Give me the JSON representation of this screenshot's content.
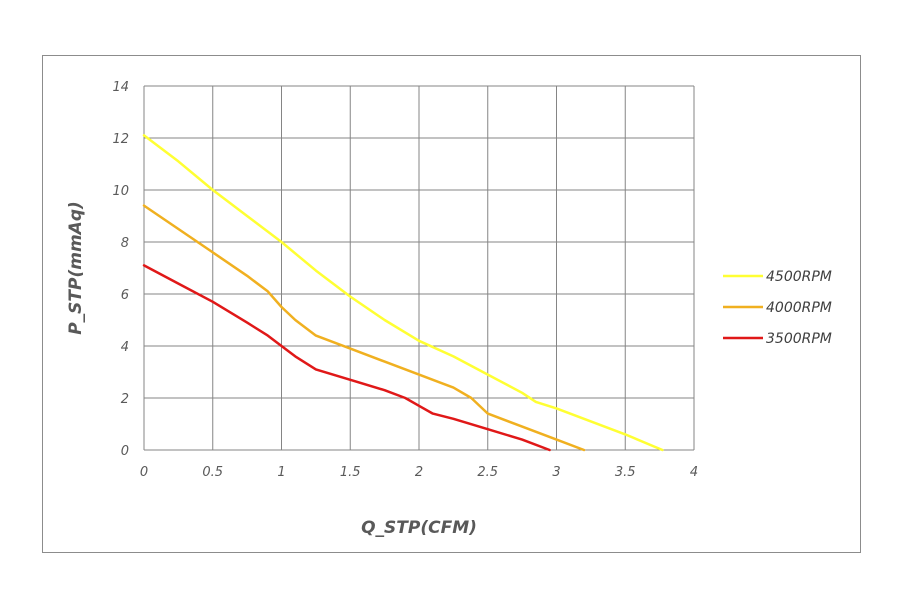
{
  "chart_data": {
    "type": "line",
    "xlabel": "Q_STP(CFM)",
    "ylabel": "P_STP(mmAq)",
    "xlim": [
      0,
      4
    ],
    "ylim": [
      0,
      14
    ],
    "xticks": [
      "0",
      "0.5",
      "1",
      "1.5",
      "2",
      "2.5",
      "3",
      "3.5",
      "4"
    ],
    "yticks": [
      "0",
      "2",
      "4",
      "6",
      "8",
      "10",
      "12",
      "14"
    ],
    "grid": true,
    "legend_position": "right",
    "series": [
      {
        "name": "4500RPM",
        "color": "#ffff33",
        "points": [
          [
            0,
            12.1
          ],
          [
            0.25,
            11.1
          ],
          [
            0.5,
            10.0
          ],
          [
            0.75,
            9.0
          ],
          [
            1.0,
            8.0
          ],
          [
            1.25,
            6.9
          ],
          [
            1.5,
            5.9
          ],
          [
            1.75,
            5.0
          ],
          [
            2.0,
            4.2
          ],
          [
            2.25,
            3.6
          ],
          [
            2.5,
            2.9
          ],
          [
            2.75,
            2.2
          ],
          [
            2.85,
            1.85
          ],
          [
            3.0,
            1.6
          ],
          [
            3.25,
            1.1
          ],
          [
            3.5,
            0.6
          ],
          [
            3.77,
            0
          ]
        ]
      },
      {
        "name": "4000RPM",
        "color": "#f0b020",
        "points": [
          [
            0,
            9.4
          ],
          [
            0.25,
            8.5
          ],
          [
            0.5,
            7.6
          ],
          [
            0.75,
            6.7
          ],
          [
            0.9,
            6.1
          ],
          [
            1.0,
            5.5
          ],
          [
            1.1,
            5.0
          ],
          [
            1.25,
            4.4
          ],
          [
            1.5,
            3.9
          ],
          [
            1.75,
            3.4
          ],
          [
            2.0,
            2.9
          ],
          [
            2.25,
            2.4
          ],
          [
            2.38,
            2.0
          ],
          [
            2.5,
            1.4
          ],
          [
            2.75,
            0.9
          ],
          [
            3.0,
            0.4
          ],
          [
            3.2,
            0
          ]
        ]
      },
      {
        "name": "3500RPM",
        "color": "#e01818",
        "points": [
          [
            0,
            7.1
          ],
          [
            0.25,
            6.4
          ],
          [
            0.5,
            5.7
          ],
          [
            0.75,
            4.9
          ],
          [
            0.9,
            4.4
          ],
          [
            1.0,
            4.0
          ],
          [
            1.1,
            3.6
          ],
          [
            1.25,
            3.1
          ],
          [
            1.5,
            2.7
          ],
          [
            1.75,
            2.3
          ],
          [
            1.9,
            2.0
          ],
          [
            2.0,
            1.7
          ],
          [
            2.1,
            1.4
          ],
          [
            2.25,
            1.2
          ],
          [
            2.5,
            0.8
          ],
          [
            2.75,
            0.4
          ],
          [
            2.95,
            0
          ]
        ]
      }
    ]
  }
}
